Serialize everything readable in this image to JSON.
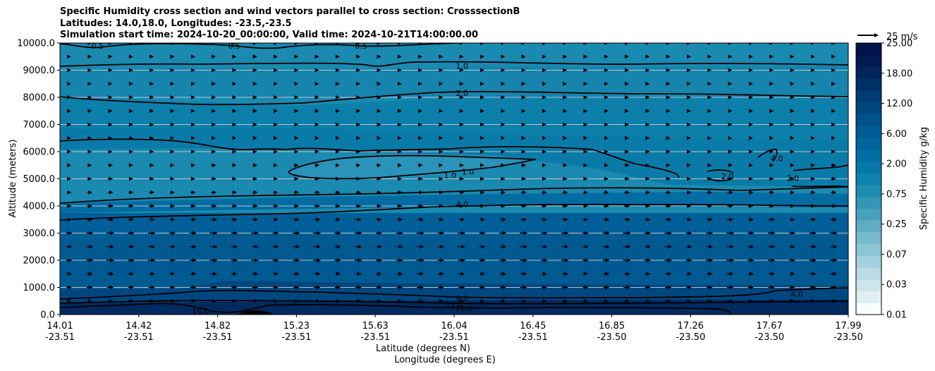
{
  "chart_data": {
    "type": "heatmap",
    "title": [
      "Specific Humidity cross section and wind vectors parallel to cross section: CrosssectionB",
      "Latitudes: 14.0,18.0, Longitudes: -23.5,-23.5",
      "Simulation start time: 2024-10-20_00:00:00, Valid time: 2024-10-21T14:00:00.00"
    ],
    "xlabel": [
      "Latitude (degrees N)",
      "Longitude (degrees E)"
    ],
    "ylabel": "Altitude (meters)",
    "ylim": [
      0,
      10000
    ],
    "xlim": [
      14.01,
      17.99
    ],
    "yticks": [
      0,
      1000,
      2000,
      3000,
      4000,
      5000,
      6000,
      7000,
      8000,
      9000,
      10000
    ],
    "yticklabels": [
      "0.0",
      "1000.0",
      "2000.0",
      "3000.0",
      "4000.0",
      "5000.0",
      "6000.0",
      "7000.0",
      "8000.0",
      "9000.0",
      "10000.0"
    ],
    "xticks": [
      {
        "lat": "14.01",
        "lon": "-23.51"
      },
      {
        "lat": "14.42",
        "lon": "-23.51"
      },
      {
        "lat": "14.82",
        "lon": "-23.51"
      },
      {
        "lat": "15.23",
        "lon": "-23.51"
      },
      {
        "lat": "15.63",
        "lon": "-23.51"
      },
      {
        "lat": "16.04",
        "lon": "-23.51"
      },
      {
        "lat": "16.45",
        "lon": "-23.51"
      },
      {
        "lat": "16.85",
        "lon": "-23.50"
      },
      {
        "lat": "17.26",
        "lon": "-23.50"
      },
      {
        "lat": "17.67",
        "lon": "-23.50"
      },
      {
        "lat": "17.99",
        "lon": "-23.50"
      }
    ],
    "grid": "horizontal",
    "colorbar": {
      "label": "Specific Humidity g/kg",
      "ticks": [
        "0.01",
        "0.03",
        "0.07",
        "0.25",
        "0.75",
        "2.00",
        "6.00",
        "12.00",
        "18.00",
        "25.00"
      ],
      "colors": [
        "#f7fcfd",
        "#e0eff3",
        "#cde6ed",
        "#b8dbe5",
        "#a3d0de",
        "#8dc5d6",
        "#77b9cd",
        "#5fadc5",
        "#48a1bc",
        "#3396b6",
        "#1e8cb0",
        "#0e82ad",
        "#0578a8",
        "#006ea2",
        "#00659c",
        "#005c94",
        "#00528b",
        "#004780",
        "#003c74",
        "#003068",
        "#00245c",
        "#001a52",
        "#00124a"
      ]
    },
    "quiver_key": {
      "label": "25 m/s",
      "speed": 25
    },
    "contour_labels": [
      {
        "text": "0.5",
        "lat": 14.2,
        "alt": 9900
      },
      {
        "text": "0.5",
        "lat": 14.89,
        "alt": 9900
      },
      {
        "text": "0.5",
        "lat": 15.53,
        "alt": 9900
      },
      {
        "text": "1.0",
        "lat": 16.04,
        "alt": 9150
      },
      {
        "text": "2.0",
        "lat": 16.04,
        "alt": 8160
      },
      {
        "text": "1.0",
        "lat": 15.98,
        "alt": 5130
      },
      {
        "text": "1.0",
        "lat": 16.07,
        "alt": 5260
      },
      {
        "text": "4.0",
        "lat": 16.04,
        "alt": 4070
      },
      {
        "text": "2.0",
        "lat": 17.38,
        "alt": 5090
      },
      {
        "text": "4.0",
        "lat": 17.63,
        "alt": 5750
      },
      {
        "text": "2.0",
        "lat": 17.71,
        "alt": 5020
      },
      {
        "text": "8.0",
        "lat": 16.04,
        "alt": 600
      },
      {
        "text": "12.0",
        "lat": 16.0,
        "alt": 380
      },
      {
        "text": "16.0",
        "lat": 16.05,
        "alt": 240
      },
      {
        "text": "16.0",
        "lat": 14.72,
        "alt": 130
      },
      {
        "text": "4.0",
        "lat": 17.73,
        "alt": 760
      }
    ],
    "wind": [
      {
        "alt": 10000,
        "u": 2
      },
      {
        "alt": 9500,
        "u": 3
      },
      {
        "alt": 9000,
        "u": 3
      },
      {
        "alt": 8500,
        "u": 3
      },
      {
        "alt": 8000,
        "u": 3
      },
      {
        "alt": 7500,
        "u": 3
      },
      {
        "alt": 7000,
        "u": 3
      },
      {
        "alt": 6500,
        "u": 3
      },
      {
        "alt": 6000,
        "u": 3
      },
      {
        "alt": 5500,
        "u": 4
      },
      {
        "alt": 5000,
        "u": 4
      },
      {
        "alt": 4500,
        "u": 5
      },
      {
        "alt": 4000,
        "u": 5
      },
      {
        "alt": 3500,
        "u": 6
      },
      {
        "alt": 3000,
        "u": 7
      },
      {
        "alt": 2500,
        "u": 7
      },
      {
        "alt": 2000,
        "u": 7
      },
      {
        "alt": 1500,
        "u": 6
      },
      {
        "alt": 1000,
        "u": 6
      },
      {
        "alt": 500,
        "u": 5
      }
    ]
  }
}
